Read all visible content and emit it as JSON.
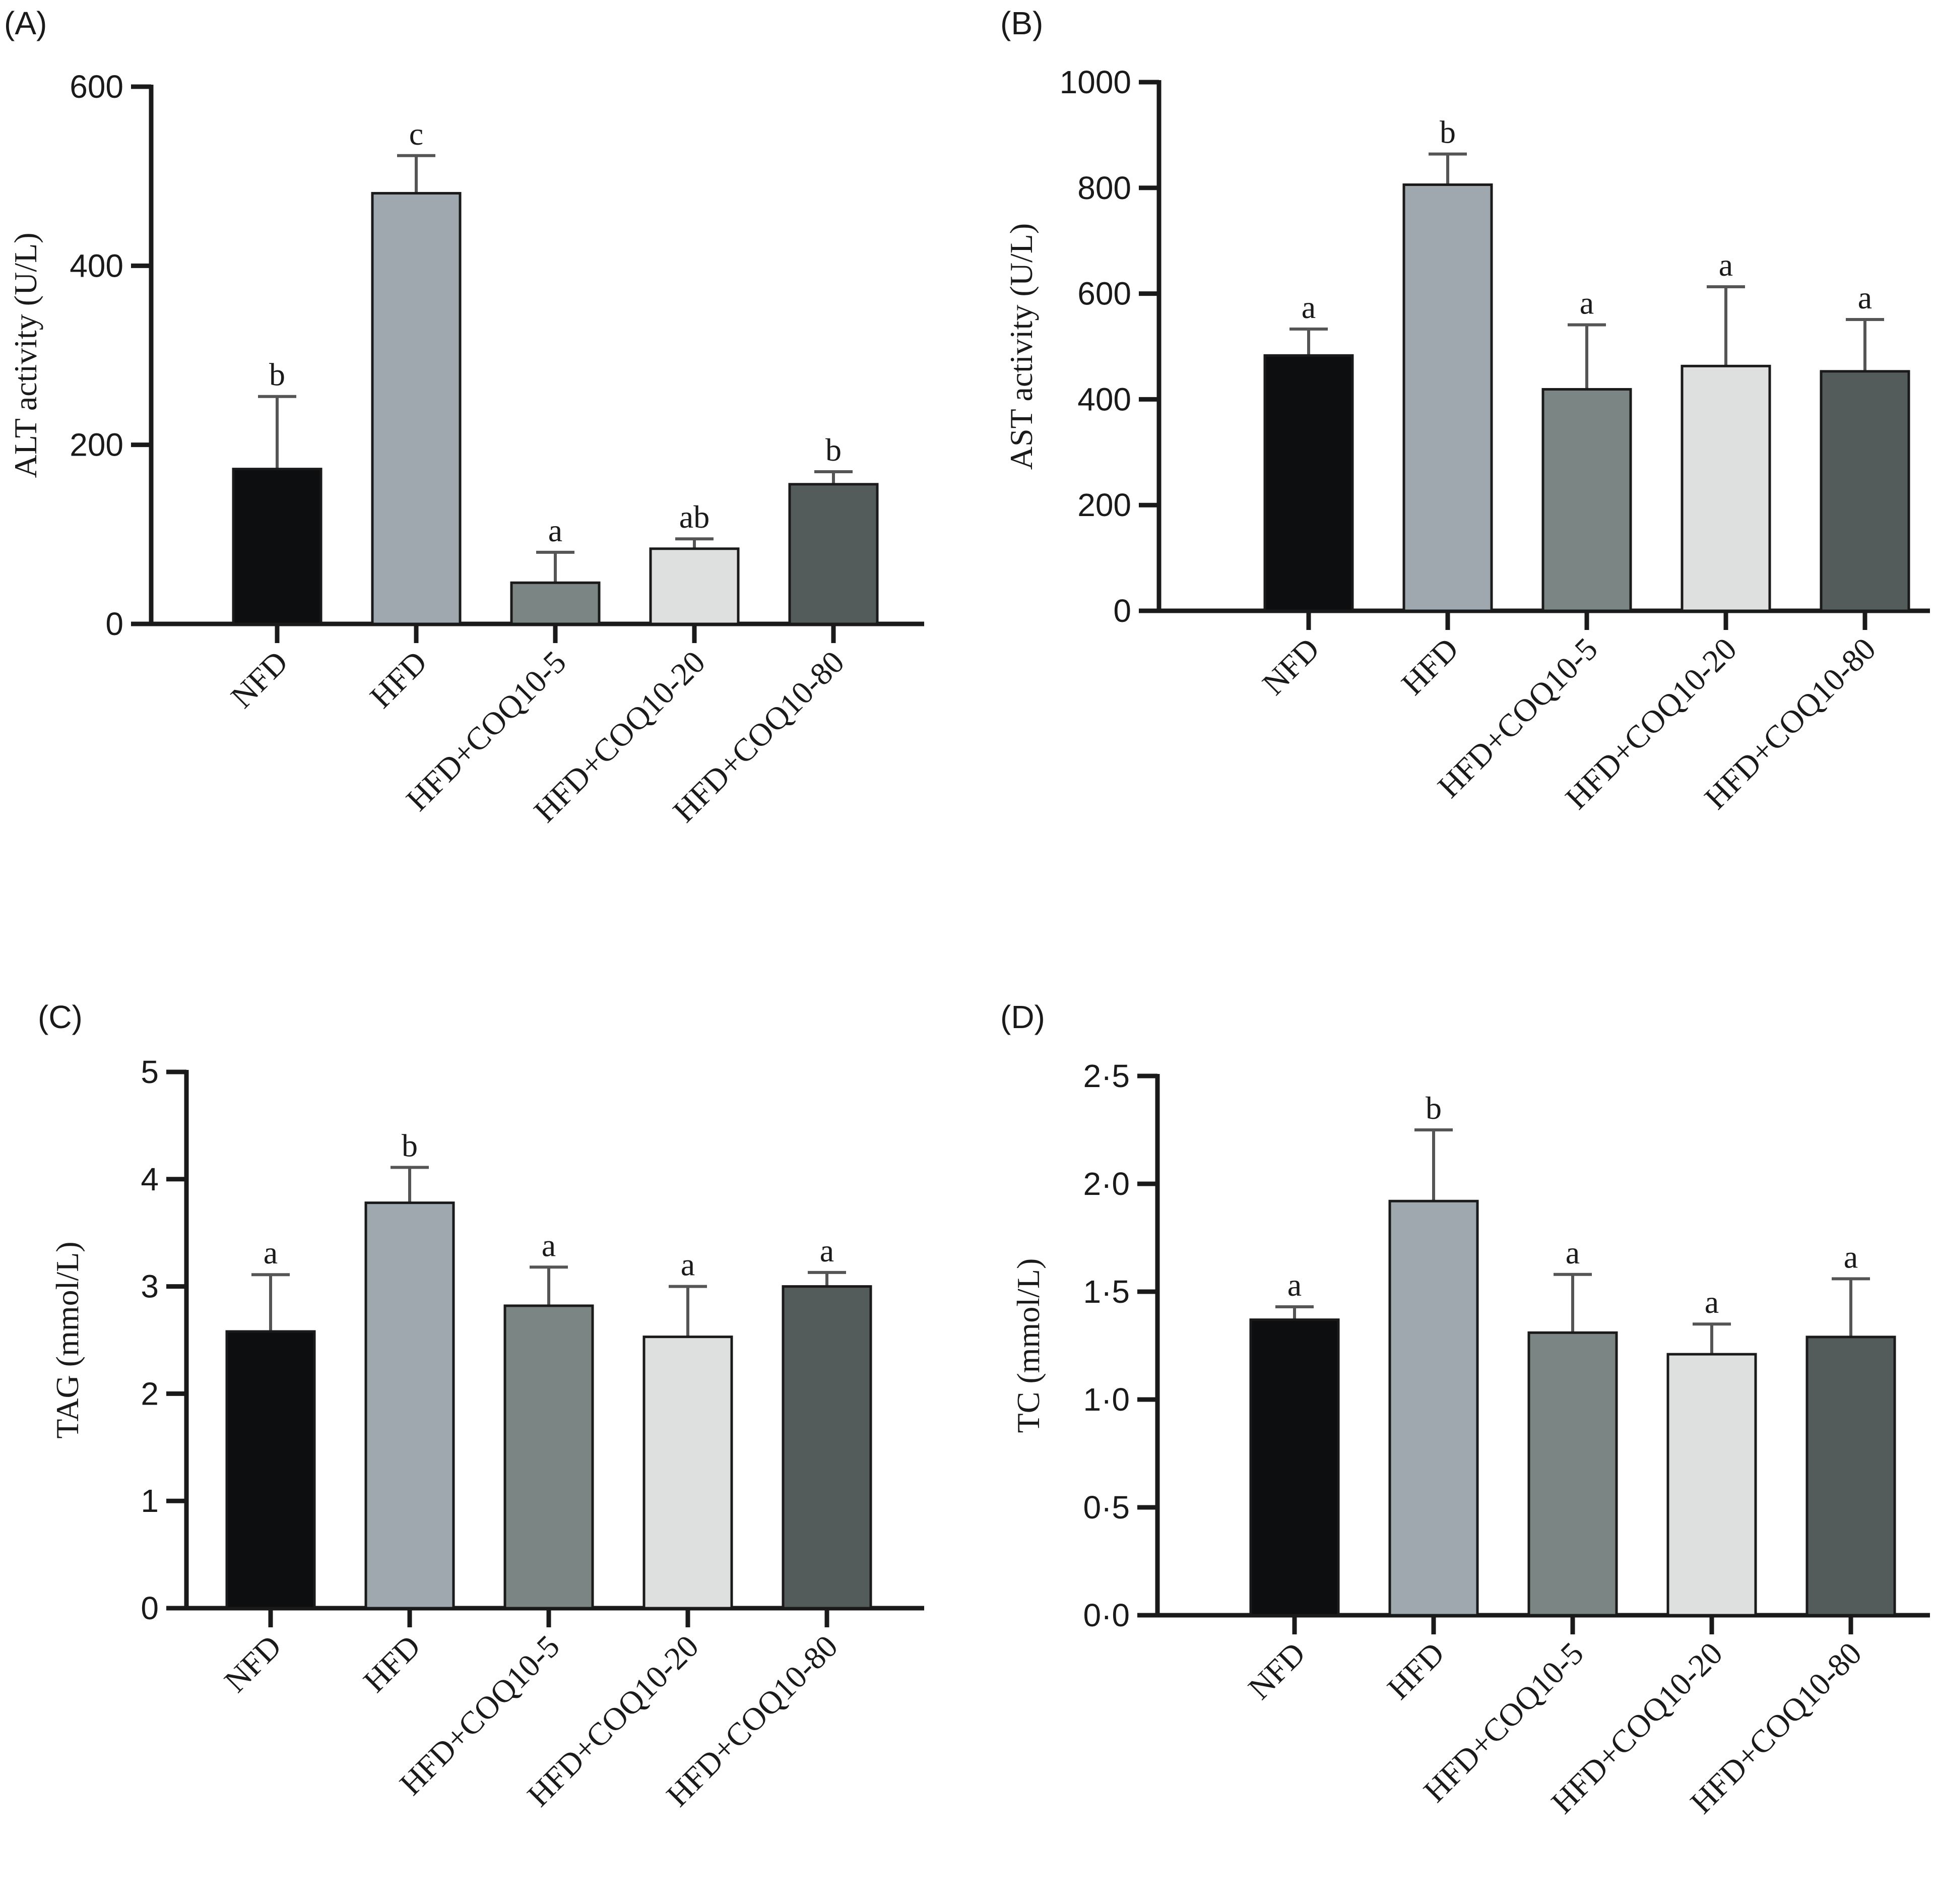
{
  "chart_data": [
    {
      "type": "bar",
      "panel": "(A)",
      "ylabel": "ALT activity (U/L)",
      "ylim": [
        0,
        600
      ],
      "yticks": [
        "0",
        "200",
        "400",
        "600"
      ],
      "yticks_values": [
        0,
        200,
        400,
        600
      ],
      "categories": [
        "NFD",
        "HFD",
        "HFD+COQ10-5",
        "HFD+COQ10-20",
        "HFD+COQ10-80"
      ],
      "values": [
        173,
        481,
        46,
        84,
        156
      ],
      "errors": [
        81,
        42,
        34,
        11,
        14
      ],
      "significance": [
        "b",
        "c",
        "a",
        "ab",
        "b"
      ]
    },
    {
      "type": "bar",
      "panel": "(B)",
      "ylabel": "AST activity (U/L)",
      "ylim": [
        0,
        1000
      ],
      "yticks": [
        "0",
        "200",
        "400",
        "600",
        "800",
        "1000"
      ],
      "yticks_values": [
        0,
        200,
        400,
        600,
        800,
        1000
      ],
      "categories": [
        "NFD",
        "HFD",
        "HFD+COQ10-5",
        "HFD+COQ10-20",
        "HFD+COQ10-80"
      ],
      "values": [
        483,
        806,
        419,
        463,
        453
      ],
      "errors": [
        50,
        58,
        122,
        150,
        98
      ],
      "significance": [
        "a",
        "b",
        "a",
        "a",
        "a"
      ]
    },
    {
      "type": "bar",
      "panel": "(C)",
      "ylabel": "TAG (mmol/L)",
      "ylim": [
        0,
        5
      ],
      "yticks": [
        "0",
        "1",
        "2",
        "3",
        "4",
        "5"
      ],
      "yticks_values": [
        0,
        1,
        2,
        3,
        4,
        5
      ],
      "categories": [
        "NFD",
        "HFD",
        "HFD+COQ10-5",
        "HFD+COQ10-20",
        "HFD+COQ10-80"
      ],
      "values": [
        2.58,
        3.78,
        2.82,
        2.53,
        3.0
      ],
      "errors": [
        0.53,
        0.33,
        0.36,
        0.47,
        0.13
      ],
      "significance": [
        "a",
        "b",
        "a",
        "a",
        "a"
      ]
    },
    {
      "type": "bar",
      "panel": "(D)",
      "ylabel": "TC (mmol/L)",
      "ylim": [
        0,
        2.5
      ],
      "yticks": [
        "0·0",
        "0·5",
        "1·0",
        "1·5",
        "2·0",
        "2·5"
      ],
      "yticks_values": [
        0,
        0.5,
        1.0,
        1.5,
        2.0,
        2.5
      ],
      "categories": [
        "NFD",
        "HFD",
        "HFD+COQ10-5",
        "HFD+COQ10-20",
        "HFD+COQ10-80"
      ],
      "values": [
        1.37,
        1.92,
        1.31,
        1.21,
        1.29
      ],
      "errors": [
        0.06,
        0.33,
        0.27,
        0.14,
        0.27
      ],
      "significance": [
        "a",
        "b",
        "a",
        "a",
        "a"
      ]
    }
  ],
  "colors": {
    "bars": [
      "#0d0e0f",
      "#9ea8ae",
      "#7b8684",
      "#dde0df",
      "#545c5b"
    ],
    "axis": "#1a1a1a",
    "error_bar": "#555555"
  }
}
